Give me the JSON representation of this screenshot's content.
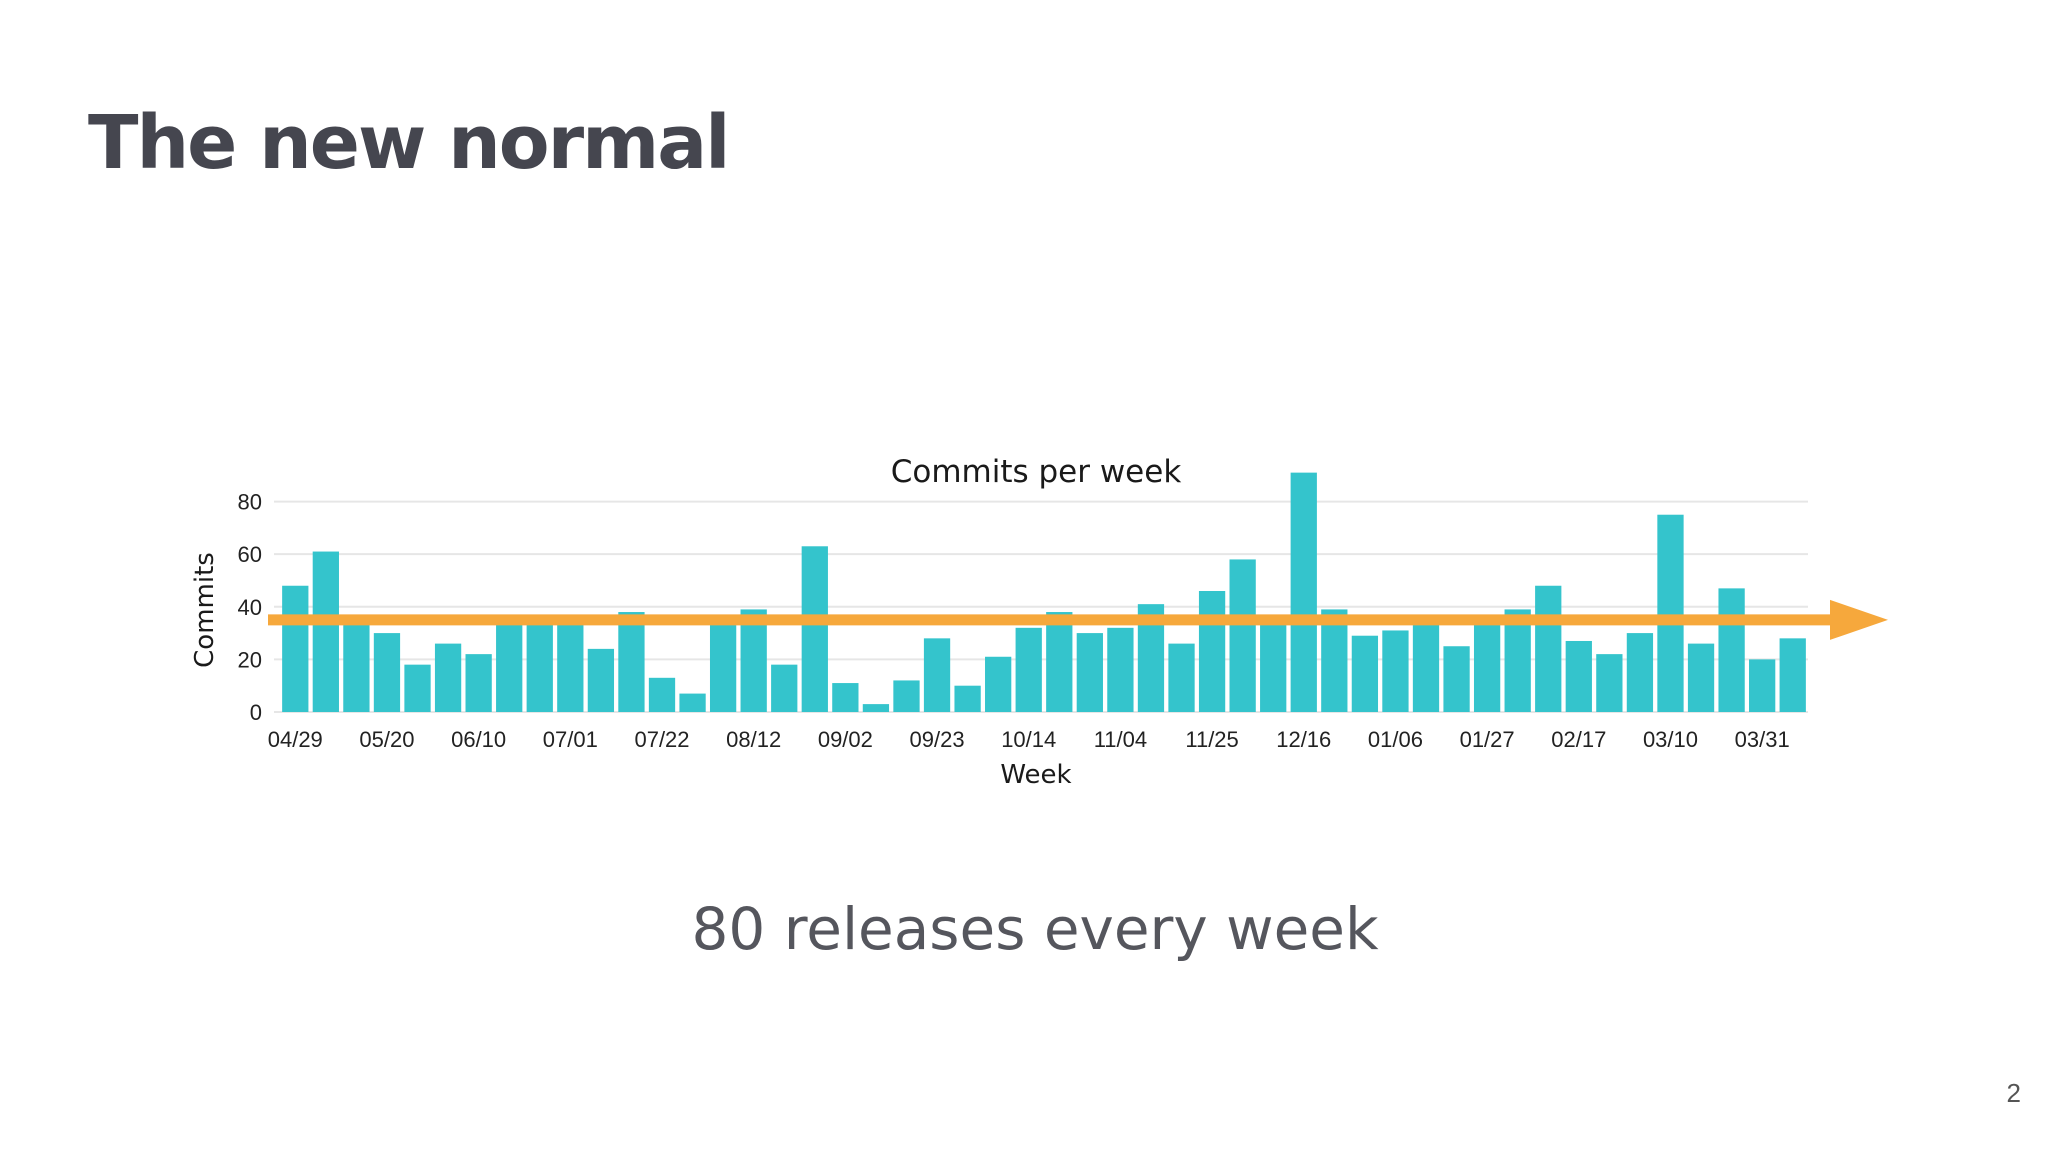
{
  "slide": {
    "title": "The new normal",
    "subtitle": "80 releases every week",
    "page_number": "2"
  },
  "colors": {
    "bar": "#34c4cc",
    "trend_arrow": "#f6a83c",
    "grid": "#e6e6e6",
    "title_text": "#45464f"
  },
  "chart_data": {
    "type": "bar",
    "title": "Commits per week",
    "xlabel": "Week",
    "ylabel": "Commits",
    "ylim": [
      0,
      92
    ],
    "yticks": [
      0,
      20,
      40,
      60,
      80
    ],
    "grid": true,
    "xtick_labels": [
      "04/29",
      "05/20",
      "06/10",
      "07/01",
      "07/22",
      "08/12",
      "09/02",
      "09/23",
      "10/14",
      "11/04",
      "11/25",
      "12/16",
      "01/06",
      "01/27",
      "02/17",
      "03/10",
      "03/31"
    ],
    "xtick_every": 3,
    "values": [
      48,
      61,
      35,
      30,
      18,
      26,
      22,
      36,
      37,
      37,
      24,
      38,
      13,
      7,
      35,
      39,
      18,
      63,
      11,
      3,
      12,
      28,
      10,
      21,
      32,
      38,
      30,
      32,
      41,
      26,
      46,
      58,
      35,
      91,
      39,
      29,
      31,
      35,
      25,
      35,
      39,
      48,
      27,
      22,
      30,
      75,
      26,
      47,
      20,
      28
    ],
    "trend_line": {
      "value": 35,
      "style": "arrow"
    }
  }
}
